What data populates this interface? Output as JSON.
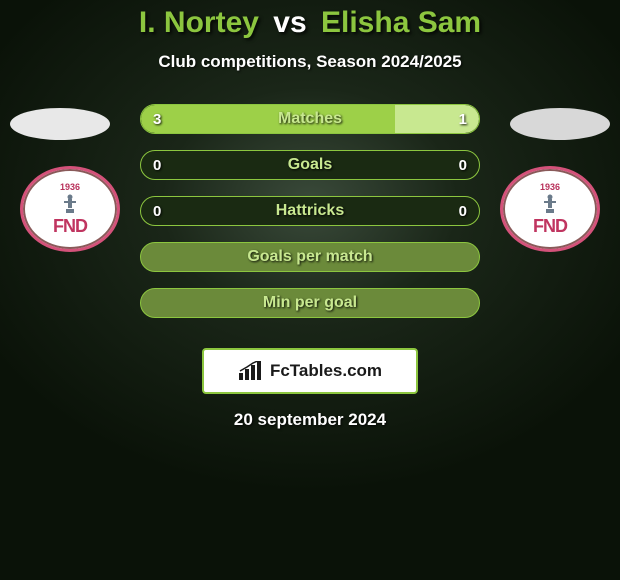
{
  "colors": {
    "accent": "#8cc63f",
    "title_white": "#ffffff",
    "bar_border": "#8cc63f",
    "bar_track": "#1a2a12",
    "bar_empty_track": "#6b8a3a",
    "bar_fill_left": "#9dd048",
    "bar_fill_right": "#c8e890",
    "bar_label": "#c8e890",
    "logo_border": "#8cc63f",
    "logo_bg": "#ffffff",
    "badge_ring": "#d4527a",
    "badge_ring_inner": "#8a5a5a",
    "badge_text": "#c03560"
  },
  "title": {
    "p1": "I. Nortey",
    "vs": "vs",
    "p2": "Elisha Sam",
    "p1_color": "#8cc63f",
    "vs_color": "#ffffff",
    "p2_color": "#8cc63f"
  },
  "subtitle": "Club competitions, Season 2024/2025",
  "badge": {
    "year": "1936",
    "text": "FND"
  },
  "bars": [
    {
      "label": "Matches",
      "left_val": "3",
      "right_val": "1",
      "left_pct": 75,
      "right_pct": 25,
      "track": "dark"
    },
    {
      "label": "Goals",
      "left_val": "0",
      "right_val": "0",
      "left_pct": 0,
      "right_pct": 0,
      "track": "dark"
    },
    {
      "label": "Hattricks",
      "left_val": "0",
      "right_val": "0",
      "left_pct": 0,
      "right_pct": 0,
      "track": "dark"
    },
    {
      "label": "Goals per match",
      "left_val": "",
      "right_val": "",
      "left_pct": 0,
      "right_pct": 0,
      "track": "empty"
    },
    {
      "label": "Min per goal",
      "left_val": "",
      "right_val": "",
      "left_pct": 0,
      "right_pct": 0,
      "track": "empty"
    }
  ],
  "logo": {
    "text": "FcTables.com"
  },
  "date": "20 september 2024"
}
